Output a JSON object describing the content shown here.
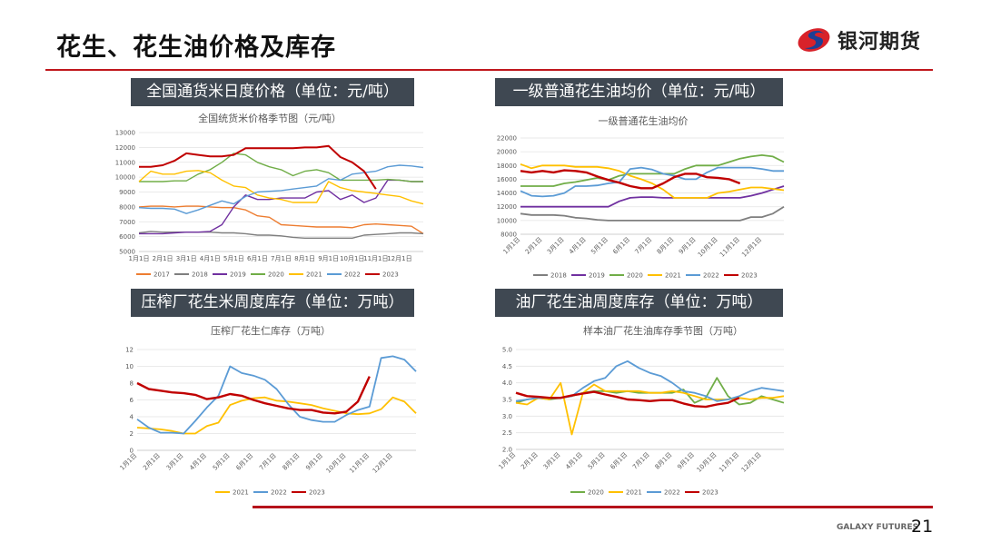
{
  "header": {
    "title": "花生、花生油价格及库存",
    "logo_text": "银河期货"
  },
  "footer": {
    "brand": "GALAXY FUTURES",
    "page_number": "21"
  },
  "colors": {
    "accent": "#c0171c",
    "box_bg": "#3f4852",
    "2017": "#ED7D31",
    "2018": "#7F7F7F",
    "2019": "#7030A0",
    "2020": "#70AD47",
    "2021": "#FFC000",
    "2022": "#5B9BD5",
    "2023": "#C00000"
  },
  "panels": [
    {
      "heading": "全国通货米日度价格（单位：元/吨）"
    },
    {
      "heading": "一级普通花生油均价（单位：元/吨）"
    },
    {
      "heading": "压榨厂花生米周度库存（单位：万吨）"
    },
    {
      "heading": "油厂花生油周度库存（单位：万吨）"
    }
  ],
  "chart_data": [
    {
      "type": "line",
      "title": "全国统货米价格季节图（元/吨）",
      "ylim": [
        5000,
        13000
      ],
      "ytick_labels": [
        "5000",
        "6000",
        "7000",
        "8000",
        "9000",
        "10000",
        "11000",
        "12000",
        "13000"
      ],
      "xtick_labels": [
        "1月1日",
        "2月1日",
        "3月1日",
        "4月1日",
        "5月1日",
        "6月1日",
        "7月1日",
        "8月1日",
        "9月1日",
        "10月1日",
        "11月1日",
        "12月1日"
      ],
      "x_note": "semi-monthly points from 1月1日",
      "grid": true,
      "legend": "bottom",
      "series": [
        {
          "name": "2017",
          "values": [
            8000,
            8050,
            8050,
            8000,
            8050,
            8050,
            8000,
            7950,
            7950,
            7800,
            7400,
            7300,
            6800,
            6750,
            6700,
            6650,
            6650,
            6650,
            6600,
            6800,
            6850,
            6800,
            6750,
            6700,
            6200
          ]
        },
        {
          "name": "2018",
          "values": [
            6250,
            6350,
            6300,
            6300,
            6300,
            6300,
            6300,
            6250,
            6250,
            6200,
            6100,
            6100,
            6050,
            5950,
            5900,
            5900,
            5900,
            5900,
            5900,
            6100,
            6150,
            6200,
            6250,
            6250,
            6200
          ]
        },
        {
          "name": "2019",
          "values": [
            6200,
            6200,
            6200,
            6250,
            6300,
            6300,
            6350,
            6800,
            8000,
            8800,
            8500,
            8500,
            8600,
            8600,
            8600,
            9000,
            9100,
            8500,
            8800,
            8300,
            8600,
            9800,
            9800,
            9700,
            9700
          ]
        },
        {
          "name": "2020",
          "values": [
            9700,
            9700,
            9700,
            9750,
            9750,
            10200,
            10500,
            11000,
            11600,
            11500,
            11000,
            10700,
            10500,
            10100,
            10400,
            10500,
            10300,
            9800,
            9800,
            9800,
            9800,
            9850,
            9800,
            9700,
            9700
          ]
        },
        {
          "name": "2021",
          "values": [
            9700,
            10400,
            10200,
            10200,
            10400,
            10450,
            10300,
            9800,
            9400,
            9300,
            8800,
            8600,
            8500,
            8300,
            8300,
            8300,
            9700,
            9300,
            9100,
            9000,
            8900,
            8800,
            8700,
            8400,
            8200
          ]
        },
        {
          "name": "2022",
          "values": [
            7950,
            7900,
            7900,
            7850,
            7550,
            7800,
            8100,
            8400,
            8200,
            8700,
            9000,
            9050,
            9100,
            9200,
            9300,
            9400,
            9900,
            9800,
            10200,
            10300,
            10400,
            10700,
            10800,
            10750,
            10650
          ]
        },
        {
          "name": "2023",
          "values": [
            10700,
            10700,
            10800,
            11100,
            11600,
            11500,
            11400,
            11400,
            11500,
            11950,
            11950,
            11950,
            11950,
            11950,
            12000,
            12000,
            12100,
            11350,
            11000,
            10400,
            9200
          ]
        }
      ]
    },
    {
      "type": "line",
      "title": "一级普通花生油均价",
      "ylim": [
        8000,
        22000
      ],
      "ytick_labels": [
        "8000",
        "10000",
        "12000",
        "14000",
        "16000",
        "18000",
        "20000",
        "22000"
      ],
      "xtick_labels": [
        "1月1日",
        "2月1日",
        "3月1日",
        "4月1日",
        "5月1日",
        "6月1日",
        "7月1日",
        "8月1日",
        "9月1日",
        "10月1日",
        "11月1日",
        "12月1日"
      ],
      "grid": true,
      "legend": "bottom",
      "series": [
        {
          "name": "2018",
          "values": [
            11000,
            10800,
            10800,
            10800,
            10700,
            10400,
            10300,
            10100,
            10000,
            10000,
            10000,
            10000,
            10000,
            10000,
            10000,
            10000,
            10000,
            10000,
            10000,
            10000,
            10000,
            10500,
            10500,
            11000,
            12000
          ]
        },
        {
          "name": "2019",
          "values": [
            12000,
            12000,
            12000,
            12000,
            12000,
            12000,
            12000,
            12000,
            12000,
            12800,
            13300,
            13400,
            13400,
            13300,
            13300,
            13300,
            13300,
            13300,
            13300,
            13300,
            13300,
            13600,
            14000,
            14500,
            15000
          ]
        },
        {
          "name": "2020",
          "values": [
            15000,
            15000,
            15000,
            15000,
            15400,
            15600,
            15900,
            16200,
            15900,
            16500,
            16800,
            16800,
            16800,
            16800,
            16800,
            17500,
            18000,
            18000,
            18000,
            18500,
            19000,
            19300,
            19500,
            19300,
            18500
          ]
        },
        {
          "name": "2021",
          "values": [
            18200,
            17600,
            18000,
            18000,
            18000,
            17800,
            17800,
            17800,
            17600,
            17200,
            16500,
            16000,
            15400,
            14500,
            13300,
            13300,
            13300,
            13300,
            14000,
            14200,
            14500,
            14800,
            14800,
            14600,
            14400
          ]
        },
        {
          "name": "2022",
          "values": [
            14300,
            13600,
            13500,
            13600,
            14000,
            15000,
            15000,
            15100,
            15400,
            15600,
            17500,
            17700,
            17400,
            16800,
            16500,
            16000,
            16000,
            17000,
            17700,
            17700,
            17700,
            17700,
            17500,
            17200,
            17200
          ]
        },
        {
          "name": "2023",
          "values": [
            17200,
            17000,
            17200,
            17000,
            17300,
            17200,
            17000,
            16400,
            15900,
            15500,
            15000,
            14700,
            14700,
            15400,
            16300,
            16800,
            16800,
            16300,
            16200,
            16000,
            15400
          ]
        }
      ]
    },
    {
      "type": "line",
      "title": "压榨厂花生仁库存（万吨）",
      "ylim": [
        0,
        12
      ],
      "ytick_labels": [
        "0",
        "2",
        "4",
        "6",
        "8",
        "10",
        "12"
      ],
      "xtick_labels": [
        "1月1日",
        "2月1日",
        "3月1日",
        "4月1日",
        "5月1日",
        "6月1日",
        "7月1日",
        "8月1日",
        "9月1日",
        "10月1日",
        "11月1日",
        "12月1日"
      ],
      "grid": true,
      "legend": "bottom",
      "series": [
        {
          "name": "2021",
          "values": [
            2.7,
            2.6,
            2.5,
            2.3,
            2.0,
            2.0,
            2.9,
            3.3,
            5.4,
            5.9,
            6.2,
            6.3,
            5.9,
            5.8,
            5.6,
            5.4,
            5.0,
            4.7,
            4.4,
            4.3,
            4.4,
            4.9,
            6.3,
            5.8,
            4.4
          ]
        },
        {
          "name": "2022",
          "values": [
            3.7,
            2.7,
            2.1,
            2.1,
            2.0,
            3.5,
            5.1,
            6.5,
            10.0,
            9.2,
            8.9,
            8.4,
            7.3,
            5.5,
            4.0,
            3.6,
            3.4,
            3.4,
            4.2,
            4.8,
            5.2,
            11.0,
            11.2,
            10.8,
            9.4
          ]
        },
        {
          "name": "2023",
          "values": [
            8.0,
            7.3,
            7.1,
            6.9,
            6.8,
            6.6,
            6.1,
            6.3,
            6.7,
            6.5,
            6.0,
            5.6,
            5.3,
            5.0,
            4.8,
            4.8,
            4.5,
            4.4,
            4.6,
            5.8,
            8.8
          ]
        }
      ]
    },
    {
      "type": "line",
      "title": "样本油厂花生油库存季节图（万吨）",
      "ylim": [
        2.0,
        5.0
      ],
      "ytick_labels": [
        "2.0",
        "2.5",
        "3.0",
        "3.5",
        "4.0",
        "4.5",
        "5.0"
      ],
      "xtick_labels": [
        "1月1日",
        "2月1日",
        "3月1日",
        "4月1日",
        "5月1日",
        "6月1日",
        "7月1日",
        "8月1日",
        "9月1日",
        "10月1日",
        "11月1日",
        "12月1日"
      ],
      "grid": true,
      "legend": "bottom",
      "series": [
        {
          "name": "2020",
          "values": [
            3.4,
            3.5,
            3.55,
            3.5,
            3.55,
            3.6,
            3.7,
            3.75,
            3.75,
            3.7,
            3.75,
            3.7,
            3.7,
            3.7,
            3.7,
            3.8,
            3.4,
            3.55,
            4.15,
            3.6,
            3.35,
            3.4,
            3.6,
            3.5,
            3.4
          ]
        },
        {
          "name": "2021",
          "values": [
            3.4,
            3.35,
            3.55,
            3.5,
            4.0,
            2.45,
            3.7,
            3.95,
            3.75,
            3.75,
            3.75,
            3.75,
            3.7,
            3.7,
            3.75,
            3.7,
            3.6,
            3.5,
            3.5,
            3.5,
            3.55,
            3.5,
            3.55,
            3.55,
            3.6
          ]
        },
        {
          "name": "2022",
          "values": [
            3.45,
            3.5,
            3.55,
            3.55,
            3.55,
            3.6,
            3.85,
            4.05,
            4.15,
            4.5,
            4.65,
            4.45,
            4.3,
            4.2,
            4.0,
            3.75,
            3.7,
            3.6,
            3.45,
            3.5,
            3.6,
            3.75,
            3.85,
            3.8,
            3.75
          ]
        },
        {
          "name": "2023",
          "values": [
            3.7,
            3.6,
            3.58,
            3.55,
            3.55,
            3.62,
            3.68,
            3.73,
            3.65,
            3.58,
            3.5,
            3.48,
            3.45,
            3.48,
            3.48,
            3.38,
            3.3,
            3.28,
            3.35,
            3.4,
            3.55
          ]
        }
      ]
    }
  ]
}
